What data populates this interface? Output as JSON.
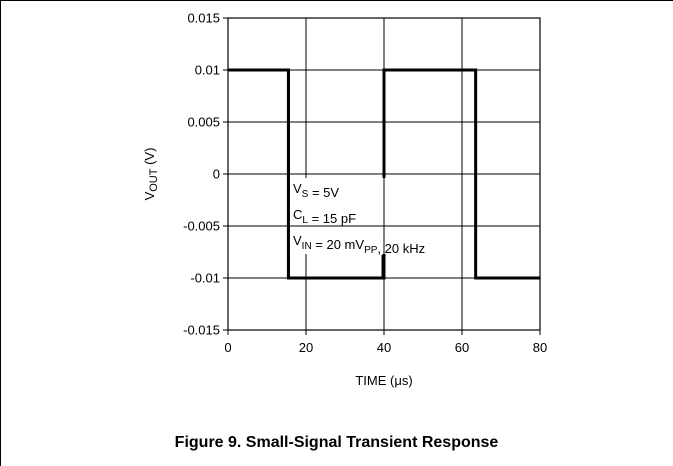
{
  "chart_data": {
    "type": "line",
    "title": "",
    "xlabel": {
      "base": "TIME (",
      "mu": "μ",
      "rest": "s)"
    },
    "ylabel": {
      "prefix": "V",
      "sub": "OUT",
      "suffix": " (V)"
    },
    "xlim": [
      0,
      80
    ],
    "ylim": [
      -0.015,
      0.015
    ],
    "x_ticks": [
      0,
      20,
      40,
      60,
      80
    ],
    "x_tick_labels": [
      "0",
      "20",
      "40",
      "60",
      "80"
    ],
    "y_ticks": [
      0.015,
      0.01,
      0.005,
      0,
      -0.005,
      -0.01,
      -0.015
    ],
    "y_tick_labels": [
      "0.015",
      "0.01",
      "0.005",
      "0",
      "-0.005",
      "-0.01",
      "-0.015"
    ],
    "grid": true,
    "legend": "none",
    "series": [
      {
        "x": [
          0,
          15.5,
          15.5,
          40,
          40,
          63.5,
          63.5,
          80
        ],
        "y": [
          0.01,
          0.01,
          -0.01,
          -0.01,
          0.01,
          0.01,
          -0.01,
          -0.01
        ]
      }
    ],
    "annotations": [
      {
        "parts": [
          {
            "t": "V"
          },
          {
            "t": "S",
            "sub": true
          },
          {
            "t": " = 5V"
          }
        ]
      },
      {
        "parts": [
          {
            "t": "C"
          },
          {
            "t": "L",
            "sub": true
          },
          {
            "t": " = 15 pF"
          }
        ]
      },
      {
        "parts": [
          {
            "t": "V"
          },
          {
            "t": "IN",
            "sub": true
          },
          {
            "t": " = 20 mV"
          },
          {
            "t": "PP",
            "sub": true
          },
          {
            "t": ", 20 kHz"
          }
        ]
      }
    ],
    "colors": {
      "line": "#000000",
      "grid": "#000000",
      "background": "#ffffff"
    }
  },
  "caption": "Figure 9. Small-Signal Transient Response"
}
